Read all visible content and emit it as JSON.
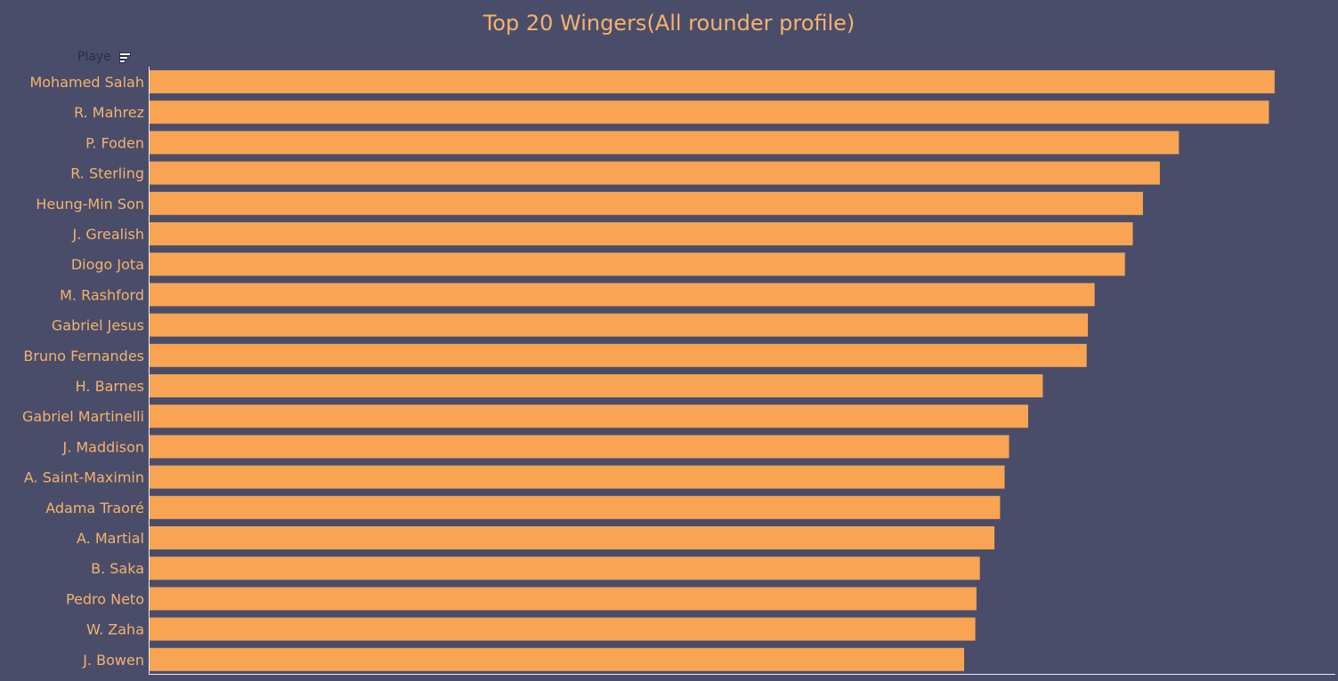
{
  "header": {
    "column_label": "Playe",
    "sort_icon": "sort-icon"
  },
  "chart_data": {
    "type": "bar",
    "orientation": "horizontal",
    "title": "Top 20 Wingers(All rounder  profile)",
    "xlabel": "",
    "ylabel": "Player",
    "categories": [
      "Mohamed Salah",
      "R. Mahrez",
      "P. Foden",
      "R. Sterling",
      "Heung-Min Son",
      "J. Grealish",
      "Diogo Jota",
      "M. Rashford",
      "Gabriel Jesus",
      "Bruno Fernandes",
      "H. Barnes",
      "Gabriel Martinelli",
      "J. Maddison",
      "A. Saint-Maximin",
      "Adama Traoré",
      "A. Martial",
      "B. Saka",
      "Pedro Neto",
      "W. Zaha",
      "J. Bowen"
    ],
    "values": [
      100,
      99.5,
      91.5,
      89.8,
      88.3,
      87.4,
      86.7,
      84.0,
      83.4,
      83.3,
      79.4,
      78.1,
      76.4,
      76.0,
      75.6,
      75.1,
      73.8,
      73.5,
      73.4,
      72.4
    ],
    "xlim": [
      0,
      105.4
    ],
    "grid": false,
    "axis_ticks_shown": false,
    "colors": {
      "bar": "#f8a452",
      "background": "#4a4d6a",
      "label": "#f6b26b",
      "axis": "#e8e8ee"
    }
  }
}
